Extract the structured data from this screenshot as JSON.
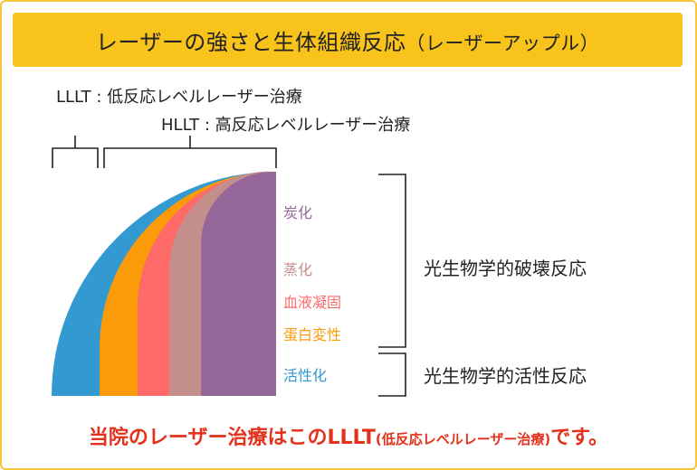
{
  "title": {
    "main": "レーザーの強さと生体組織反応",
    "paren": "（レーザーアップル）"
  },
  "definitions": {
    "lllt": "LLLT : 低反応レベルレーザー治療",
    "hllt": "HLLT : 高反応レベルレーザー治療"
  },
  "layers": [
    {
      "label": "炭化",
      "color": "#96679b"
    },
    {
      "label": "蒸化",
      "color": "#c48f8b"
    },
    {
      "label": "血液凝固",
      "color": "#fd6a67"
    },
    {
      "label": "蛋白変性",
      "color": "#fb9b09"
    },
    {
      "label": "活性化",
      "color": "#3399d1"
    }
  ],
  "reactions": {
    "destructive": "光生物学的破壊反応",
    "activating": "光生物学的活性反応"
  },
  "note": {
    "main": "当院のレーザー治療はこのLLLT",
    "paren": "(低反応レベルレーザー治療)",
    "end": "です。"
  }
}
